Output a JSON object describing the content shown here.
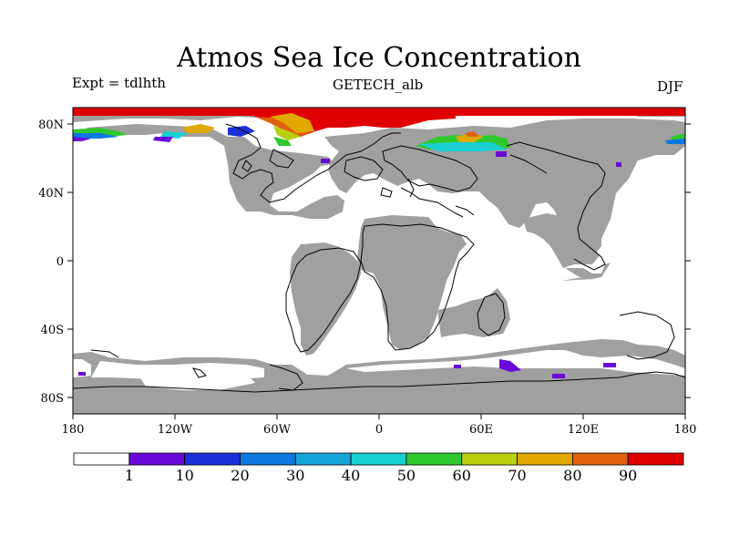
{
  "header": {
    "title": "Atmos Sea Ice Concentration",
    "expt": "Expt = tdlhth",
    "run": "GETECH_alb",
    "season": "DJF"
  },
  "axes": {
    "lon_ticks": [
      "180",
      "120W",
      "60W",
      "0",
      "60E",
      "120E",
      "180"
    ],
    "lat_ticks": [
      "80N",
      "40N",
      "0",
      "40S",
      "80S"
    ]
  },
  "colorbar": {
    "labels": [
      "1",
      "10",
      "20",
      "30",
      "40",
      "50",
      "60",
      "70",
      "80",
      "90"
    ],
    "colors": [
      "#ffffff",
      "#6a0ad8",
      "#1a2fd8",
      "#0f78e0",
      "#15a6d8",
      "#1acfd0",
      "#2fc82f",
      "#b8d010",
      "#e0a800",
      "#e06010",
      "#e00000"
    ]
  },
  "map_colors": {
    "land": "#a0a0a0",
    "coast": "#000000",
    "ocean": "#ffffff"
  }
}
